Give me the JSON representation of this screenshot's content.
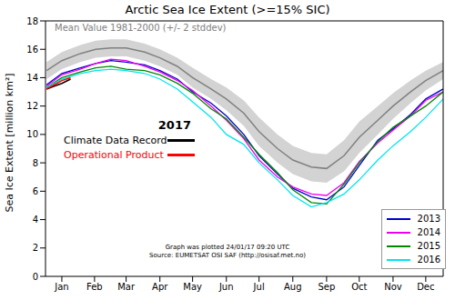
{
  "chart_data": {
    "type": "line",
    "title": "Arctic Sea Ice Extent (>=15% SIC)",
    "y_label": "Sea Ice Extent [million km²]",
    "x": [
      1,
      15,
      32,
      46,
      60,
      74,
      91,
      105,
      121,
      135,
      152,
      166,
      182,
      196,
      213,
      227,
      244,
      258,
      274,
      288,
      305,
      319,
      335,
      349,
      365
    ],
    "xlim": [
      0,
      365
    ],
    "xticks": [
      {
        "value": 15,
        "label": "Jan"
      },
      {
        "value": 45,
        "label": "Feb"
      },
      {
        "value": 74,
        "label": "Mar"
      },
      {
        "value": 105,
        "label": "Apr"
      },
      {
        "value": 135,
        "label": "May"
      },
      {
        "value": 166,
        "label": "Jun"
      },
      {
        "value": 196,
        "label": "Jul"
      },
      {
        "value": 227,
        "label": "Aug"
      },
      {
        "value": 258,
        "label": "Sep"
      },
      {
        "value": 288,
        "label": "Oct"
      },
      {
        "value": 319,
        "label": "Nov"
      },
      {
        "value": 349,
        "label": "Dec"
      }
    ],
    "ylim": [
      0,
      18
    ],
    "yticks": [
      0,
      2,
      4,
      6,
      8,
      10,
      12,
      14,
      16,
      18
    ],
    "mean": {
      "name": "Mean Value 1981-2000 (+/- 2 stddev)",
      "color": "#808080",
      "values": [
        14.5,
        15.2,
        15.7,
        16.0,
        16.1,
        16.1,
        15.8,
        15.4,
        14.8,
        14.0,
        13.2,
        12.5,
        11.5,
        10.2,
        9.0,
        8.2,
        7.7,
        7.6,
        8.5,
        9.8,
        11.0,
        12.0,
        13.0,
        13.8,
        14.5
      ],
      "lower": [
        13.9,
        14.6,
        15.1,
        15.4,
        15.5,
        15.5,
        15.2,
        14.8,
        14.2,
        13.3,
        12.5,
        11.7,
        10.6,
        9.2,
        8.0,
        7.2,
        6.7,
        6.6,
        7.4,
        8.7,
        10.0,
        11.1,
        12.2,
        13.1,
        13.9
      ],
      "upper": [
        15.1,
        15.8,
        16.3,
        16.6,
        16.7,
        16.7,
        16.4,
        16.0,
        15.4,
        14.7,
        13.9,
        13.3,
        12.4,
        11.2,
        10.0,
        9.2,
        8.7,
        8.6,
        9.6,
        10.9,
        12.0,
        12.9,
        13.8,
        14.5,
        15.1
      ]
    },
    "series": [
      {
        "name": "2013",
        "color": "#0000cc",
        "values": [
          13.5,
          14.3,
          14.7,
          15.0,
          15.2,
          15.1,
          14.9,
          14.5,
          13.9,
          13.0,
          12.2,
          11.3,
          10.0,
          8.5,
          7.2,
          6.2,
          5.6,
          5.4,
          6.3,
          7.8,
          9.6,
          10.4,
          11.4,
          12.5,
          13.2
        ]
      },
      {
        "name": "2014",
        "color": "#ee00ee",
        "values": [
          13.4,
          14.2,
          14.6,
          15.0,
          15.3,
          15.2,
          14.8,
          14.4,
          13.8,
          13.1,
          12.0,
          11.0,
          9.7,
          8.2,
          7.0,
          6.3,
          5.8,
          5.7,
          6.6,
          8.1,
          9.4,
          10.3,
          11.3,
          12.4,
          13.0
        ]
      },
      {
        "name": "2015",
        "color": "#008800",
        "values": [
          13.3,
          14.0,
          14.4,
          14.7,
          14.8,
          14.6,
          14.5,
          14.2,
          13.6,
          12.9,
          11.8,
          11.1,
          9.8,
          8.6,
          7.3,
          6.1,
          5.2,
          5.1,
          6.5,
          8.0,
          9.5,
          10.5,
          11.3,
          12.0,
          13.0
        ]
      },
      {
        "name": "2016",
        "color": "#00e5ee",
        "values": [
          13.3,
          13.9,
          14.3,
          14.5,
          14.6,
          14.5,
          14.3,
          13.9,
          13.2,
          12.3,
          11.2,
          10.0,
          9.3,
          8.0,
          6.8,
          5.7,
          4.9,
          5.2,
          5.8,
          6.8,
          8.2,
          9.2,
          10.2,
          11.2,
          12.5
        ]
      }
    ],
    "current": {
      "title": "2017",
      "series": [
        {
          "name": "Climate Data Record",
          "color": "#000000",
          "x": [
            1,
            8,
            15,
            23
          ],
          "values": [
            13.2,
            13.4,
            13.6,
            13.9
          ]
        },
        {
          "name": "Operational Product",
          "color": "#ff0000",
          "x": [
            1,
            8,
            15,
            23
          ],
          "values": [
            13.2,
            13.5,
            13.8,
            14.0
          ]
        }
      ]
    },
    "annotations": [
      "Graph was plotted 24/01/17 09:20 UTC",
      "Source: EUMETSAT OSI SAF (http://osisaf.met.no)"
    ],
    "legend": "lower right"
  }
}
